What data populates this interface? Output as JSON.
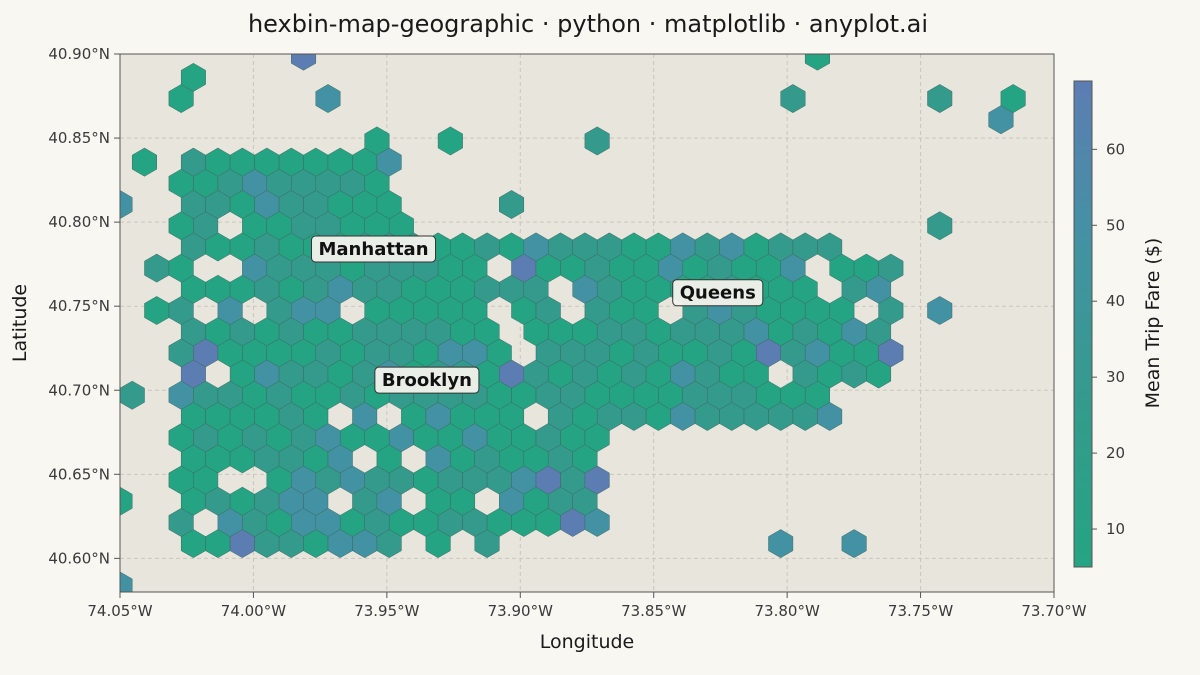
{
  "chart_data": {
    "type": "hexbin",
    "title": "hexbin-map-geographic · python · matplotlib · anyplot.ai",
    "xlabel": "Longitude",
    "ylabel": "Latitude",
    "xlim": [
      -74.05,
      -73.7
    ],
    "ylim": [
      40.58,
      40.9
    ],
    "x_ticks": [
      -74.05,
      -74.0,
      -73.95,
      -73.9,
      -73.85,
      -73.8,
      -73.75,
      -73.7
    ],
    "x_tick_labels": [
      "74.05°W",
      "74.00°W",
      "73.95°W",
      "73.90°W",
      "73.85°W",
      "73.80°W",
      "73.75°W",
      "73.70°W"
    ],
    "y_ticks": [
      40.6,
      40.65,
      40.7,
      40.75,
      40.8,
      40.85,
      40.9
    ],
    "y_tick_labels": [
      "40.60°N",
      "40.65°N",
      "40.70°N",
      "40.75°N",
      "40.80°N",
      "40.85°N",
      "40.90°N"
    ],
    "grid": true,
    "colorbar": {
      "label": "Mean Trip Fare ($)",
      "range": [
        5,
        69
      ],
      "ticks": [
        10,
        20,
        30,
        40,
        50,
        60
      ],
      "colors": [
        "#25a483",
        "#349b8c",
        "#4392a3",
        "#5c7db2"
      ]
    },
    "hex_size_deg_x": 0.00917,
    "regions": [
      {
        "lon_min": -74.03,
        "lon_max": -73.94,
        "lat_min": 40.6,
        "lat_max": 40.84
      },
      {
        "lon_min": -73.99,
        "lon_max": -73.87,
        "lat_min": 40.61,
        "lat_max": 40.7
      },
      {
        "lon_min": -73.94,
        "lon_max": -73.78,
        "lat_min": 40.68,
        "lat_max": 40.79
      },
      {
        "lon_min": -73.86,
        "lon_max": -73.76,
        "lat_min": 40.7,
        "lat_max": 40.78
      }
    ],
    "annotations": [
      {
        "text": "Manhattan",
        "lon": -73.955,
        "lat": 40.784
      },
      {
        "text": "Queens",
        "lon": -73.826,
        "lat": 40.758
      },
      {
        "text": "Brooklyn",
        "lon": -73.935,
        "lat": 40.706
      }
    ],
    "background_color": "#e8e5dc",
    "page_color": "#f9f7f1"
  }
}
